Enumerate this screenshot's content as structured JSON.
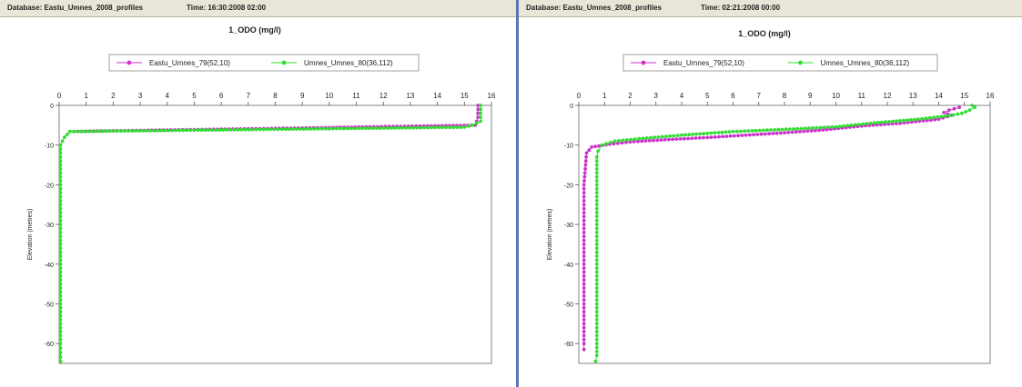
{
  "colors": {
    "series_a": "#cc33cc",
    "series_b": "#33dd33",
    "bg": "#ffffff",
    "titlebar": "#e8e6d8"
  },
  "panels": [
    {
      "window": {
        "database": "Database: Eastu_Umnes_2008_profiles",
        "time": "Time: 16:30:2008 02:00"
      },
      "chart_data": {
        "type": "line",
        "title": "1_ODO (mg/l)",
        "xlabel": "",
        "ylabel": "Elevation (metres)",
        "xlim": [
          0,
          16
        ],
        "ylim": [
          -65,
          0
        ],
        "x_ticks": [
          "0",
          "1",
          "2",
          "3",
          "4",
          "5",
          "6",
          "7",
          "8",
          "9",
          "10",
          "11",
          "12",
          "13",
          "14",
          "15",
          "16"
        ],
        "y_ticks": [
          "0",
          "-10",
          "-20",
          "-30",
          "-40",
          "-50",
          "-60"
        ],
        "legend_position": "top",
        "series": [
          {
            "name": "Eastu_Umnes_79(52,10)",
            "points": [
              [
                15.5,
                0
              ],
              [
                15.5,
                -3
              ],
              [
                15.4,
                -5
              ],
              [
                13.5,
                -5.2
              ],
              [
                11.5,
                -5.4
              ],
              [
                10,
                -5.6
              ],
              [
                8,
                -5.8
              ],
              [
                6,
                -6
              ],
              [
                4,
                -6.2
              ],
              [
                2,
                -6.4
              ],
              [
                0.4,
                -6.6
              ]
            ]
          },
          {
            "name": "Umnes_Umnes_80(36,112)",
            "points": [
              [
                15.6,
                0
              ],
              [
                15.6,
                -4
              ],
              [
                15.3,
                -5
              ],
              [
                15.0,
                -5.5
              ],
              [
                0.4,
                -6.6
              ],
              [
                0.2,
                -8
              ],
              [
                0.05,
                -10
              ],
              [
                0.05,
                -20
              ],
              [
                0.05,
                -30
              ],
              [
                0.05,
                -40
              ],
              [
                0.05,
                -50
              ],
              [
                0.05,
                -60
              ],
              [
                0.05,
                -64.5
              ]
            ]
          }
        ]
      }
    },
    {
      "window": {
        "database": "Database: Eastu_Umnes_2008_profiles",
        "time": "Time: 02:21:2008 00:00"
      },
      "chart_data": {
        "type": "line",
        "title": "1_ODO (mg/l)",
        "xlabel": "",
        "ylabel": "Elevation (metres)",
        "xlim": [
          0,
          16
        ],
        "ylim": [
          -65,
          0
        ],
        "x_ticks": [
          "0",
          "1",
          "2",
          "3",
          "4",
          "5",
          "6",
          "7",
          "8",
          "9",
          "10",
          "11",
          "12",
          "13",
          "14",
          "15",
          "16"
        ],
        "y_ticks": [
          "0",
          "-10",
          "-20",
          "-30",
          "-40",
          "-50",
          "-60"
        ],
        "legend_position": "top",
        "series": [
          {
            "name": "Eastu_Umnes_79(52,10)",
            "points": [
              [
                14.8,
                -0.5
              ],
              [
                14.4,
                -1.2
              ],
              [
                14.2,
                -1.8
              ],
              [
                14.5,
                -2.5
              ],
              [
                14.0,
                -3.5
              ],
              [
                12.5,
                -4.5
              ],
              [
                11.0,
                -5.2
              ],
              [
                9.5,
                -6.2
              ],
              [
                8.0,
                -6.9
              ],
              [
                6.5,
                -7.5
              ],
              [
                5.0,
                -8.1
              ],
              [
                3.5,
                -8.6
              ],
              [
                2.0,
                -9.2
              ],
              [
                1.2,
                -9.8
              ],
              [
                0.5,
                -10.5
              ],
              [
                0.3,
                -12
              ],
              [
                0.2,
                -20
              ],
              [
                0.2,
                -30
              ],
              [
                0.2,
                -40
              ],
              [
                0.2,
                -50
              ],
              [
                0.2,
                -60
              ],
              [
                0.2,
                -61.5
              ]
            ]
          },
          {
            "name": "Umnes_Umnes_80(36,112)",
            "points": [
              [
                15.3,
                0
              ],
              [
                15.4,
                -0.5
              ],
              [
                15.2,
                -1.2
              ],
              [
                14.9,
                -2.0
              ],
              [
                14.4,
                -2.6
              ],
              [
                13.2,
                -3.5
              ],
              [
                11.5,
                -4.4
              ],
              [
                10.0,
                -5.4
              ],
              [
                8.5,
                -5.9
              ],
              [
                6.0,
                -6.6
              ],
              [
                4.0,
                -7.5
              ],
              [
                2.5,
                -8.3
              ],
              [
                1.4,
                -9.0
              ],
              [
                0.9,
                -10.0
              ],
              [
                0.75,
                -11.5
              ],
              [
                0.7,
                -13
              ],
              [
                0.7,
                -20
              ],
              [
                0.7,
                -30
              ],
              [
                0.7,
                -40
              ],
              [
                0.7,
                -50
              ],
              [
                0.7,
                -60
              ],
              [
                0.7,
                -63
              ],
              [
                0.65,
                -64.5
              ]
            ]
          }
        ]
      }
    }
  ]
}
